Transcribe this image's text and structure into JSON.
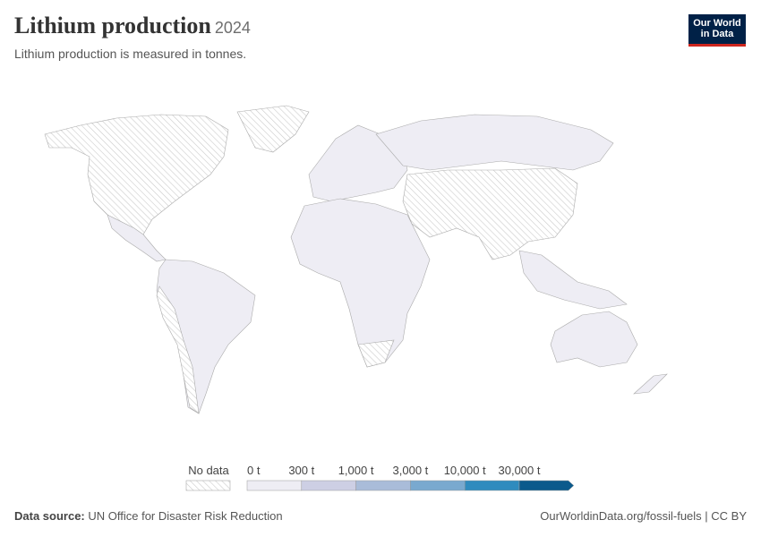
{
  "header": {
    "title": "Lithium production",
    "year": "2024",
    "subtitle": "Lithium production is measured in tonnes.",
    "logo": [
      "Our World",
      "in Data"
    ]
  },
  "legend": {
    "no_data_label": "No data",
    "ticks": [
      "0 t",
      "300 t",
      "1,000 t",
      "3,000 t",
      "10,000 t",
      "30,000 t"
    ],
    "colors": [
      "#eeedf4",
      "#cdcfe4",
      "#a9bcd9",
      "#79a9cf",
      "#2f8bbe",
      "#0b5a8c"
    ]
  },
  "footer": {
    "source_label": "Data source:",
    "source": "UN Office for Disaster Risk Reduction",
    "url": "OurWorldinData.org/fossil-fuels | CC BY"
  }
}
